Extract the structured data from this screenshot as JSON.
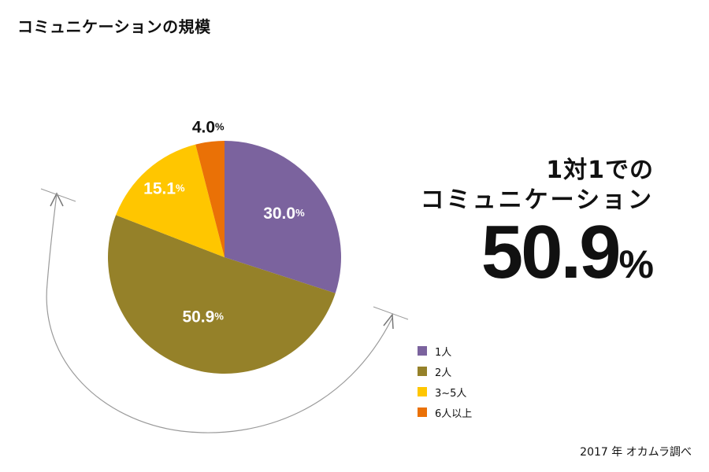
{
  "title": "コミュニケーションの規模",
  "headline": {
    "line1": "1対1での",
    "line2": "コミュニケーション",
    "value": "50.9",
    "unit": "%"
  },
  "source": "2017 年 オカムラ調べ",
  "chart_data": {
    "type": "pie",
    "slices": [
      {
        "label": "1人",
        "value": 30.0,
        "value_text": "30.0",
        "color": "#7b639e"
      },
      {
        "label": "2人",
        "value": 50.9,
        "value_text": "50.9",
        "color": "#958129"
      },
      {
        "label": "3~5人",
        "value": 15.1,
        "value_text": "15.1",
        "color": "#ffc600"
      },
      {
        "label": "6人以上",
        "value": 4.0,
        "value_text": "4.0",
        "color": "#ea7106"
      }
    ],
    "unit": "%",
    "legend_position": "bottom-right"
  }
}
